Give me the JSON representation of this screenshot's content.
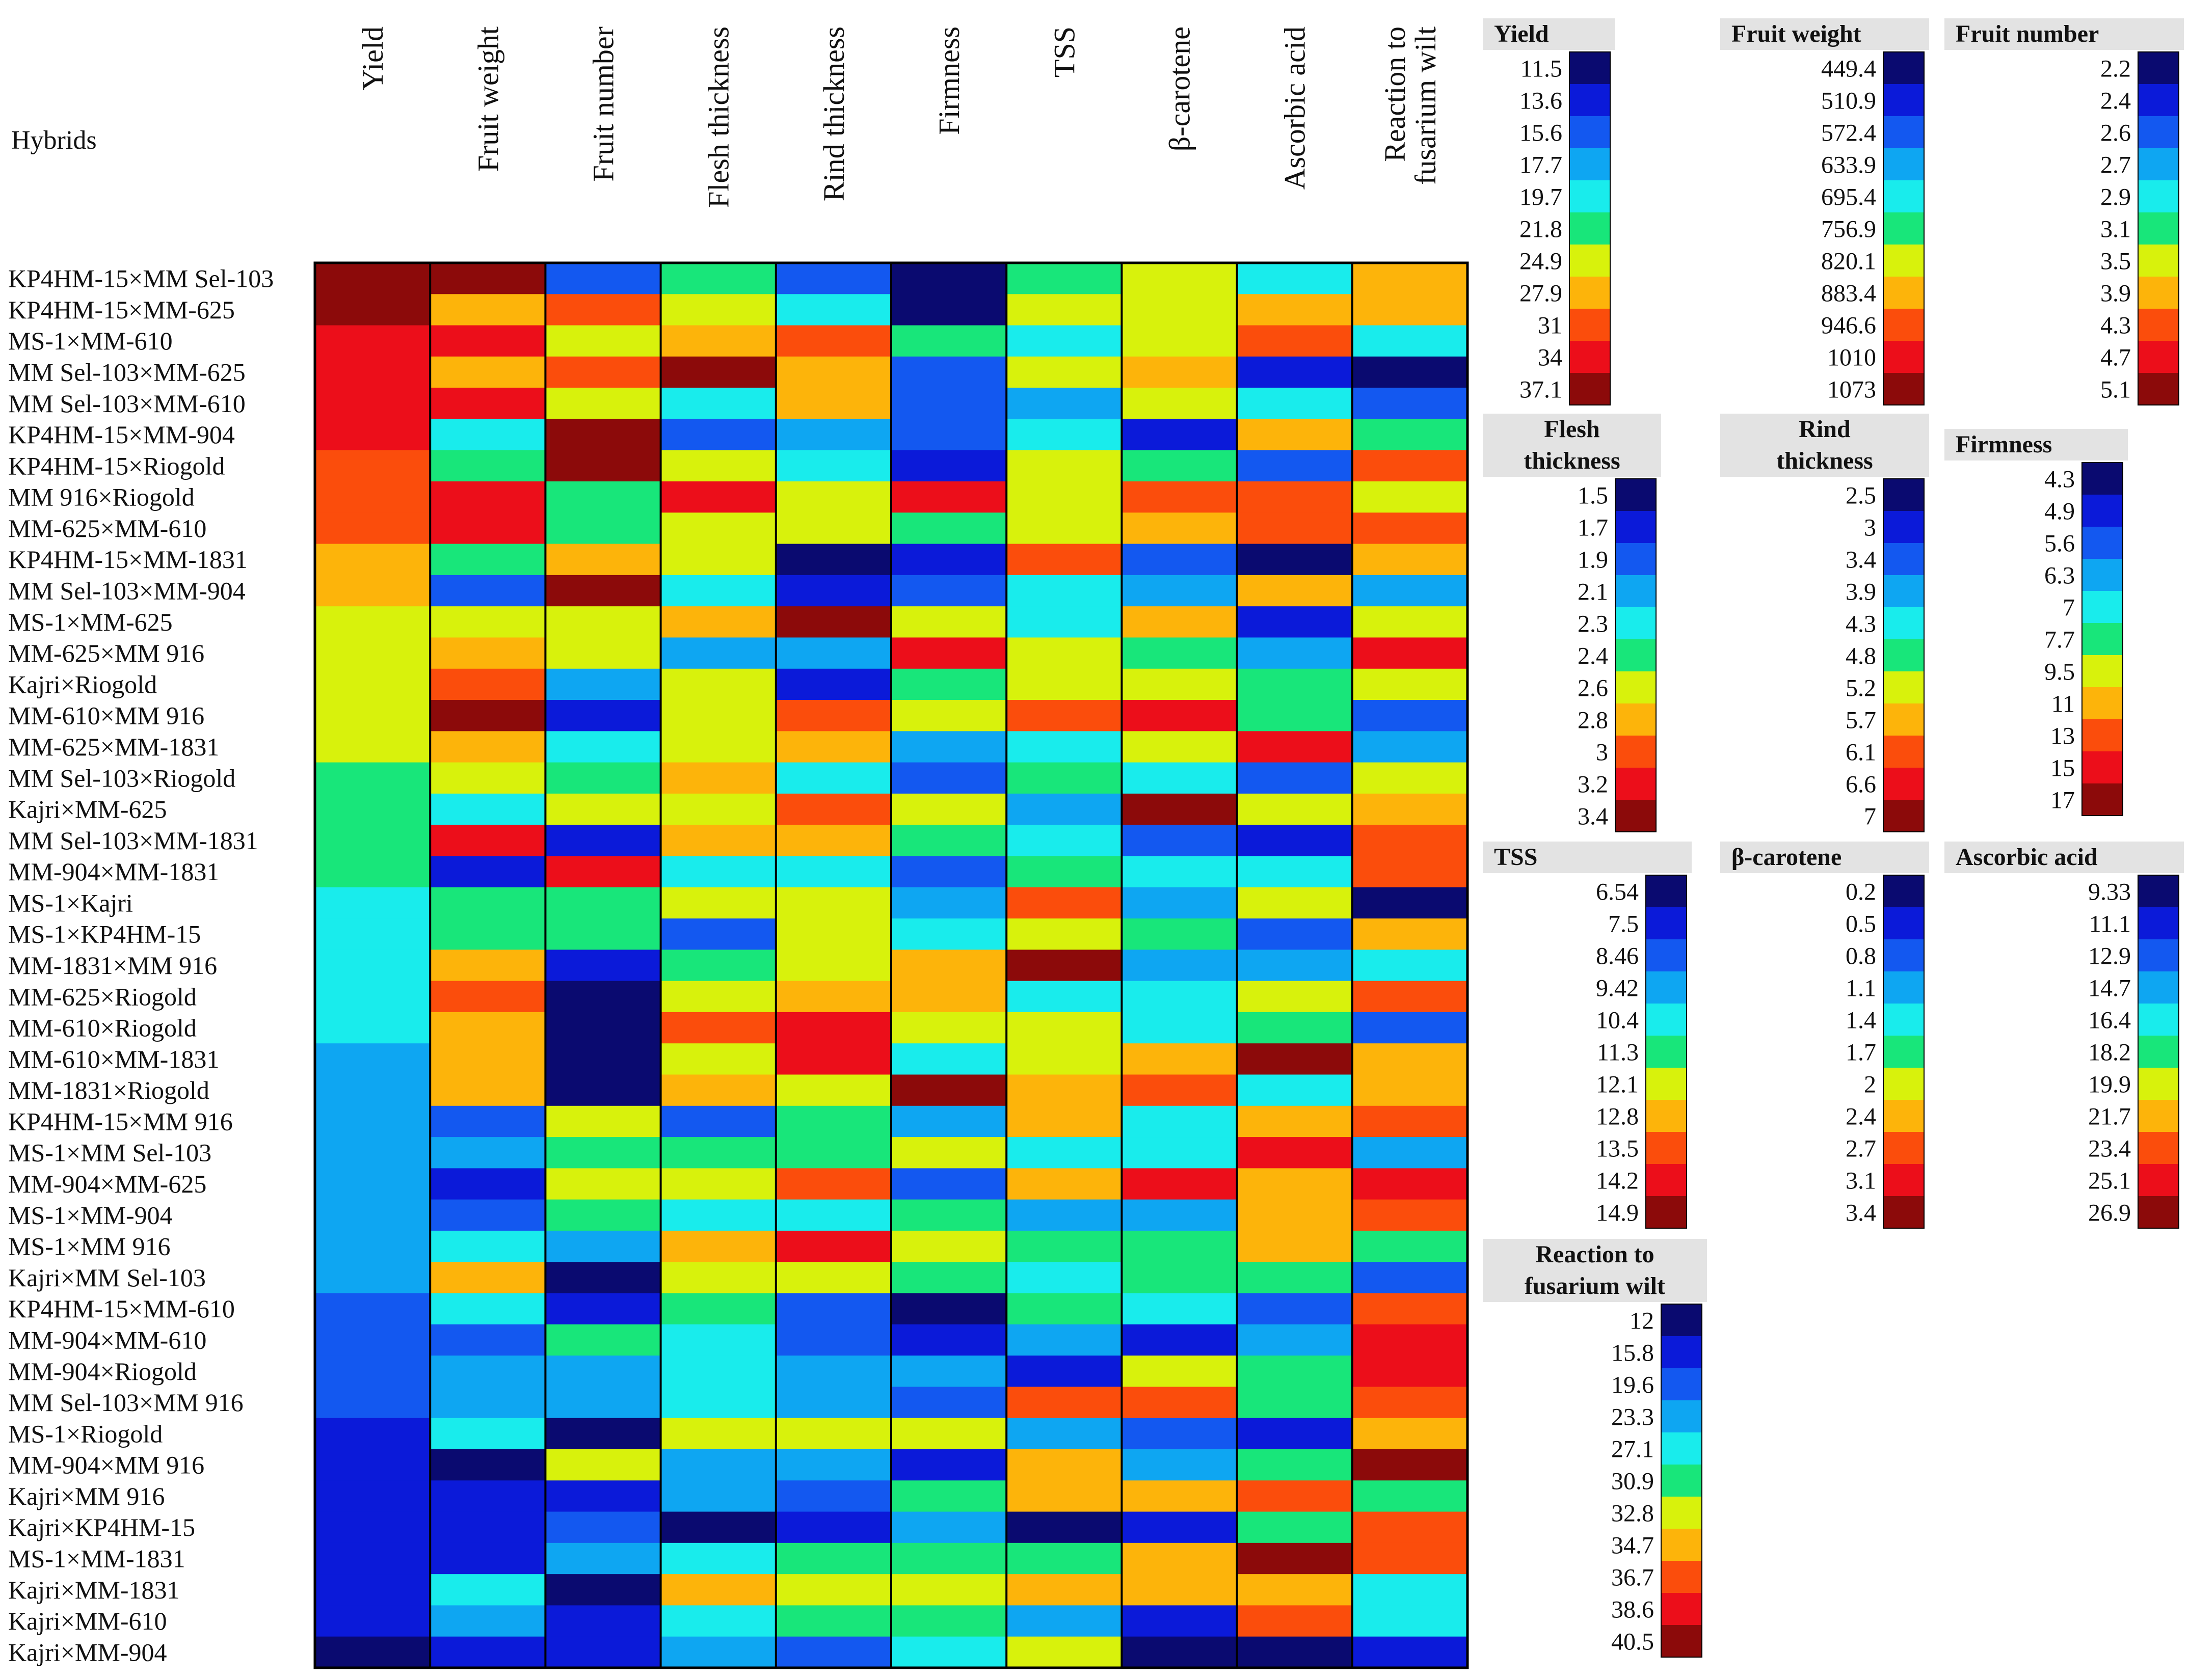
{
  "chart_data": {
    "type": "heatmap",
    "title": "",
    "row_header": "Hybrids",
    "columns": [
      "Yield",
      "Fruit weight",
      "Fruit number",
      "Flesh thickness",
      "Rind thickness",
      "Firmness",
      "TSS",
      "β-carotene",
      "Ascorbic acid",
      "Reaction to fusarium wilt"
    ],
    "column_label_lines": [
      [
        "Yield"
      ],
      [
        "Fruit weight"
      ],
      [
        "Fruit number"
      ],
      [
        "Flesh thickness"
      ],
      [
        "Rind thickness"
      ],
      [
        "Firmness"
      ],
      [
        "TSS"
      ],
      [
        "β-carotene"
      ],
      [
        "Ascorbic acid"
      ],
      [
        "Reaction to",
        "fusarium wilt"
      ]
    ],
    "rows": [
      "KP4HM-15×MM Sel-103",
      "KP4HM-15×MM-625",
      "MS-1×MM-610",
      "MM Sel-103×MM-625",
      "MM Sel-103×MM-610",
      "KP4HM-15×MM-904",
      "KP4HM-15×Riogold",
      "MM 916×Riogold",
      "MM-625×MM-610",
      "KP4HM-15×MM-1831",
      "MM Sel-103×MM-904",
      "MS-1×MM-625",
      "MM-625×MM 916",
      "Kajri×Riogold",
      "MM-610×MM 916",
      "MM-625×MM-1831",
      "MM Sel-103×Riogold",
      "Kajri×MM-625",
      "MM Sel-103×MM-1831",
      "MM-904×MM-1831",
      "MS-1×Kajri",
      "MS-1×KP4HM-15",
      "MM-1831×MM 916",
      "MM-625×Riogold",
      "MM-610×Riogold",
      "MM-610×MM-1831",
      "MM-1831×Riogold",
      "KP4HM-15×MM 916",
      "MS-1×MM Sel-103",
      "MM-904×MM-625",
      "MS-1×MM-904",
      "MS-1×MM 916",
      "Kajri×MM Sel-103",
      "KP4HM-15×MM-610",
      "MM-904×MM-610",
      "MM-904×Riogold",
      "MM Sel-103×MM 916",
      "MS-1×Riogold",
      "MM-904×MM 916",
      "Kajri×MM 916",
      "Kajri×KP4HM-15",
      "MS-1×MM-1831",
      "Kajri×MM-1831",
      "Kajri×MM-610",
      "Kajri×MM-904"
    ],
    "color_scale": [
      "#0a0a70",
      "#0b1ad9",
      "#1358f0",
      "#0ea6f2",
      "#19ecec",
      "#18e67a",
      "#d8f20c",
      "#fdb40a",
      "#fb4d0c",
      "#ec0e1a",
      "#8c0a0a"
    ],
    "value_levels": [
      [
        10,
        10,
        2,
        5,
        2,
        0,
        5,
        6,
        4,
        7
      ],
      [
        10,
        7,
        8,
        6,
        4,
        0,
        6,
        6,
        7,
        7
      ],
      [
        9,
        9,
        6,
        7,
        8,
        5,
        4,
        6,
        8,
        4
      ],
      [
        9,
        7,
        8,
        10,
        7,
        2,
        6,
        7,
        1,
        0
      ],
      [
        9,
        9,
        6,
        4,
        7,
        2,
        3,
        6,
        4,
        2
      ],
      [
        9,
        4,
        10,
        2,
        3,
        2,
        4,
        1,
        7,
        5
      ],
      [
        8,
        5,
        10,
        6,
        4,
        1,
        6,
        5,
        2,
        8
      ],
      [
        8,
        9,
        5,
        9,
        6,
        9,
        6,
        8,
        8,
        6
      ],
      [
        8,
        9,
        5,
        6,
        6,
        5,
        6,
        7,
        8,
        8
      ],
      [
        7,
        5,
        7,
        6,
        0,
        1,
        8,
        2,
        0,
        7
      ],
      [
        7,
        2,
        10,
        4,
        1,
        2,
        4,
        3,
        7,
        3
      ],
      [
        6,
        6,
        6,
        7,
        10,
        6,
        4,
        7,
        1,
        6
      ],
      [
        6,
        7,
        6,
        3,
        3,
        9,
        6,
        5,
        3,
        9
      ],
      [
        6,
        8,
        3,
        6,
        1,
        5,
        6,
        6,
        5,
        6
      ],
      [
        6,
        10,
        1,
        6,
        8,
        6,
        8,
        9,
        5,
        2
      ],
      [
        6,
        7,
        4,
        6,
        7,
        3,
        4,
        6,
        9,
        3
      ],
      [
        5,
        6,
        5,
        7,
        4,
        2,
        5,
        4,
        2,
        6
      ],
      [
        5,
        4,
        6,
        6,
        8,
        6,
        3,
        10,
        6,
        7
      ],
      [
        5,
        9,
        1,
        7,
        7,
        5,
        4,
        2,
        1,
        8
      ],
      [
        5,
        1,
        9,
        4,
        4,
        2,
        5,
        4,
        4,
        8
      ],
      [
        4,
        5,
        5,
        6,
        6,
        3,
        8,
        3,
        6,
        0
      ],
      [
        4,
        5,
        5,
        2,
        6,
        4,
        6,
        5,
        2,
        7
      ],
      [
        4,
        7,
        1,
        5,
        6,
        7,
        10,
        3,
        3,
        4
      ],
      [
        4,
        8,
        0,
        6,
        7,
        7,
        4,
        4,
        6,
        8
      ],
      [
        4,
        7,
        0,
        8,
        9,
        6,
        6,
        4,
        5,
        2
      ],
      [
        3,
        7,
        0,
        6,
        9,
        4,
        6,
        7,
        10,
        7
      ],
      [
        3,
        7,
        0,
        7,
        6,
        10,
        7,
        8,
        4,
        7
      ],
      [
        3,
        2,
        6,
        2,
        5,
        3,
        7,
        4,
        7,
        8
      ],
      [
        3,
        3,
        5,
        5,
        5,
        6,
        4,
        4,
        9,
        3
      ],
      [
        3,
        1,
        6,
        6,
        8,
        2,
        7,
        9,
        7,
        9
      ],
      [
        3,
        2,
        5,
        4,
        4,
        5,
        3,
        3,
        7,
        8
      ],
      [
        3,
        4,
        3,
        7,
        9,
        6,
        5,
        5,
        7,
        5
      ],
      [
        3,
        7,
        0,
        6,
        6,
        5,
        4,
        5,
        5,
        2
      ],
      [
        2,
        4,
        1,
        5,
        2,
        0,
        5,
        4,
        2,
        8
      ],
      [
        2,
        2,
        5,
        4,
        2,
        1,
        3,
        1,
        3,
        9
      ],
      [
        2,
        3,
        3,
        4,
        3,
        3,
        1,
        6,
        5,
        9
      ],
      [
        2,
        3,
        3,
        4,
        3,
        2,
        8,
        8,
        5,
        8
      ],
      [
        1,
        4,
        0,
        6,
        6,
        6,
        3,
        2,
        1,
        7
      ],
      [
        1,
        0,
        6,
        3,
        3,
        1,
        7,
        3,
        5,
        10
      ],
      [
        1,
        1,
        1,
        3,
        2,
        5,
        7,
        7,
        8,
        5
      ],
      [
        1,
        1,
        2,
        0,
        1,
        3,
        0,
        1,
        5,
        8
      ],
      [
        1,
        1,
        3,
        4,
        5,
        5,
        5,
        7,
        10,
        8
      ],
      [
        1,
        4,
        0,
        7,
        6,
        6,
        7,
        7,
        7,
        4
      ],
      [
        1,
        3,
        1,
        4,
        5,
        5,
        3,
        1,
        8,
        4
      ],
      [
        0,
        1,
        1,
        3,
        2,
        4,
        6,
        0,
        0,
        1
      ]
    ],
    "legends": [
      {
        "name": "Yield",
        "title_lines": [
          "Yield"
        ],
        "ticks": [
          "11.5",
          "13.6",
          "15.6",
          "17.7",
          "19.7",
          "21.8",
          "24.9",
          "27.9",
          "31",
          "34",
          "37.1"
        ]
      },
      {
        "name": "Fruit weight",
        "title_lines": [
          "Fruit weight"
        ],
        "ticks": [
          "449.4",
          "510.9",
          "572.4",
          "633.9",
          "695.4",
          "756.9",
          "820.1",
          "883.4",
          "946.6",
          "1010",
          "1073"
        ]
      },
      {
        "name": "Fruit number",
        "title_lines": [
          "Fruit number"
        ],
        "ticks": [
          "2.2",
          "2.4",
          "2.6",
          "2.7",
          "2.9",
          "3.1",
          "3.5",
          "3.9",
          "4.3",
          "4.7",
          "5.1"
        ]
      },
      {
        "name": "Flesh thickness",
        "title_lines": [
          "Flesh",
          "thickness"
        ],
        "ticks": [
          "1.5",
          "1.7",
          "1.9",
          "2.1",
          "2.3",
          "2.4",
          "2.6",
          "2.8",
          "3",
          "3.2",
          "3.4"
        ]
      },
      {
        "name": "Rind thickness",
        "title_lines": [
          "Rind",
          "thickness"
        ],
        "ticks": [
          "2.5",
          "3",
          "3.4",
          "3.9",
          "4.3",
          "4.8",
          "5.2",
          "5.7",
          "6.1",
          "6.6",
          "7"
        ]
      },
      {
        "name": "Firmness",
        "title_lines": [
          "Firmness"
        ],
        "ticks": [
          "4.3",
          "4.9",
          "5.6",
          "6.3",
          "7",
          "7.7",
          "9.5",
          "11",
          "13",
          "15",
          "17"
        ]
      },
      {
        "name": "TSS",
        "title_lines": [
          "TSS"
        ],
        "ticks": [
          "6.54",
          "7.5",
          "8.46",
          "9.42",
          "10.4",
          "11.3",
          "12.1",
          "12.8",
          "13.5",
          "14.2",
          "14.9"
        ]
      },
      {
        "name": "β-carotene",
        "title_lines": [
          "β-carotene"
        ],
        "ticks": [
          "0.2",
          "0.5",
          "0.8",
          "1.1",
          "1.4",
          "1.7",
          "2",
          "2.4",
          "2.7",
          "3.1",
          "3.4"
        ]
      },
      {
        "name": "Ascorbic acid",
        "title_lines": [
          "Ascorbic acid"
        ],
        "ticks": [
          "9.33",
          "11.1",
          "12.9",
          "14.7",
          "16.4",
          "18.2",
          "19.9",
          "21.7",
          "23.4",
          "25.1",
          "26.9"
        ]
      },
      {
        "name": "Reaction to fusarium wilt",
        "title_lines": [
          "Reaction to",
          "fusarium wilt"
        ],
        "ticks": [
          "12",
          "15.8",
          "19.6",
          "23.3",
          "27.1",
          "30.9",
          "32.8",
          "34.7",
          "36.7",
          "38.6",
          "40.5"
        ]
      }
    ]
  }
}
